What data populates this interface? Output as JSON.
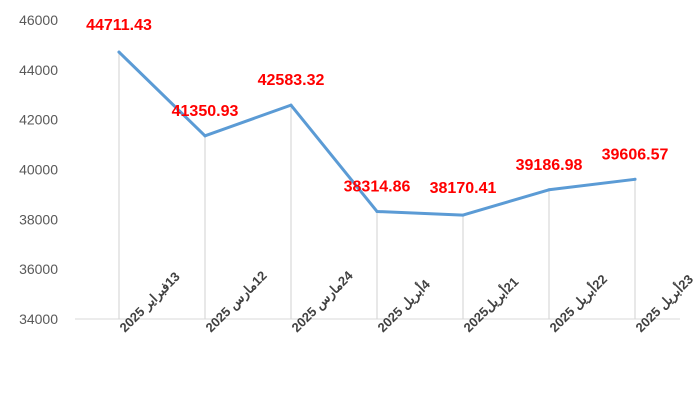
{
  "chart_data": {
    "type": "line",
    "categories": [
      "13فبراير 2025",
      "12مارس 2025",
      "24مارس 2025",
      "4أبريل 2025",
      "21أبريل2025",
      "22أبريل 2025",
      "23أبريل 2025"
    ],
    "series": [
      {
        "values": [
          44711.43,
          41350.93,
          42583.32,
          38314.86,
          38170.41,
          39186.98,
          39606.57
        ]
      }
    ],
    "data_labels": [
      "44711.43",
      "41350.93",
      "42583.32",
      "38314.86",
      "38170.41",
      "39186.98",
      "39606.57"
    ],
    "y_ticks": [
      "34000",
      "36000",
      "38000",
      "40000",
      "42000",
      "44000",
      "46000"
    ],
    "ylim": [
      34000,
      46000
    ],
    "grid": false,
    "drop_lines": true,
    "line_color": "#5b9bd5",
    "label_color": "#ff0000",
    "title": "",
    "xlabel": "",
    "ylabel": ""
  }
}
